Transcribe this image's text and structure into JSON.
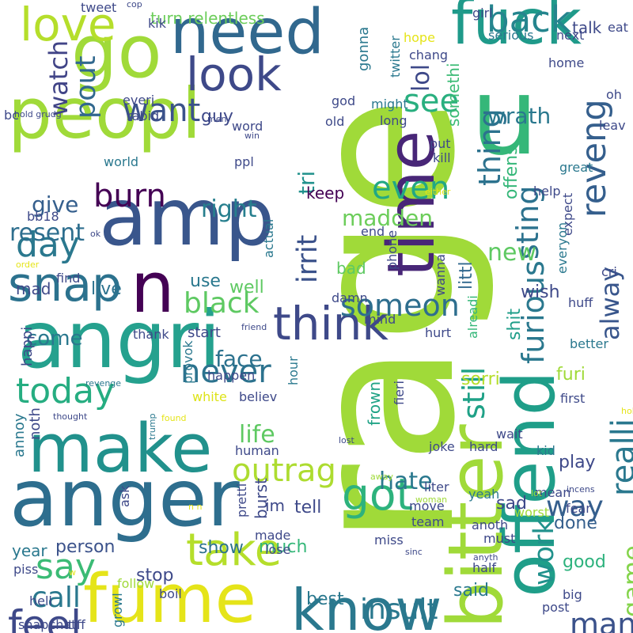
{
  "words": [
    {
      "text": "rage",
      "color": "#a0da39",
      "vertical": true
    },
    {
      "text": "peopl",
      "color": "#a0da39",
      "vertical": false
    },
    {
      "text": "go",
      "color": "#a0da39",
      "vertical": false
    },
    {
      "text": "need",
      "color": "#31688e",
      "vertical": false
    },
    {
      "text": "fuck",
      "color": "#1f9a8a",
      "vertical": false
    },
    {
      "text": "u",
      "color": "#35b779",
      "vertical": false
    },
    {
      "text": "time",
      "color": "#482677",
      "vertical": true
    },
    {
      "text": "offend",
      "color": "#1f9e89",
      "vertical": true
    },
    {
      "text": "bitter",
      "color": "#a0da39",
      "vertical": true
    },
    {
      "text": "love",
      "color": "#b5de2b",
      "vertical": false
    },
    {
      "text": "amp",
      "color": "#39568c",
      "vertical": false
    },
    {
      "text": "look",
      "color": "#3e4989",
      "vertical": false
    },
    {
      "text": "angri",
      "color": "#25a18e",
      "vertical": false
    },
    {
      "text": "make",
      "color": "#21918c",
      "vertical": false
    },
    {
      "text": "anger",
      "color": "#2e6e8e",
      "vertical": false
    },
    {
      "text": "fume",
      "color": "#e5e419",
      "vertical": false
    },
    {
      "text": "know",
      "color": "#2a788e",
      "vertical": false
    },
    {
      "text": "think",
      "color": "#3e4989",
      "vertical": false
    },
    {
      "text": "snap",
      "color": "#2c728e",
      "vertical": false
    },
    {
      "text": "n",
      "color": "#440154",
      "vertical": false
    },
    {
      "text": "take",
      "color": "#b5de2b",
      "vertical": false
    },
    {
      "text": "watch",
      "color": "#414487",
      "vertical": true
    },
    {
      "text": "want",
      "color": "#3b528b",
      "vertical": false
    },
    {
      "text": "pout",
      "color": "#31688e",
      "vertical": true
    },
    {
      "text": "lol",
      "color": "#3e4989",
      "vertical": true
    },
    {
      "text": "see",
      "color": "#29af7f",
      "vertical": false
    },
    {
      "text": "back",
      "color": "#25858e",
      "vertical": false
    },
    {
      "text": "got",
      "color": "#2db27d",
      "vertical": false
    },
    {
      "text": "burn",
      "color": "#440154",
      "vertical": false
    },
    {
      "text": "day",
      "color": "#2a788e",
      "vertical": false
    },
    {
      "text": "today",
      "color": "#26ad81",
      "vertical": false
    },
    {
      "text": "never",
      "color": "#2c728e",
      "vertical": false
    },
    {
      "text": "even",
      "color": "#22a884",
      "vertical": false
    },
    {
      "text": "thing",
      "color": "#2c728e",
      "vertical": true
    },
    {
      "text": "reveng",
      "color": "#355f8d",
      "vertical": true
    },
    {
      "text": "sting",
      "color": "#2c728e",
      "vertical": true
    },
    {
      "text": "wrath",
      "color": "#2a788e",
      "vertical": false
    },
    {
      "text": "say",
      "color": "#3bbb75",
      "vertical": false
    },
    {
      "text": "feel",
      "color": "#3e4989",
      "vertical": false
    },
    {
      "text": "black",
      "color": "#5ec962",
      "vertical": false
    },
    {
      "text": "outrag",
      "color": "#addc30",
      "vertical": false
    },
    {
      "text": "someon",
      "color": "#2e6e8e",
      "vertical": false
    },
    {
      "text": "hate",
      "color": "#2a788e",
      "vertical": false
    },
    {
      "text": "insult",
      "color": "#2a788e",
      "vertical": false
    },
    {
      "text": "realli",
      "color": "#2a788e",
      "vertical": true
    },
    {
      "text": "furious",
      "color": "#2a788e",
      "vertical": true
    },
    {
      "text": "alway",
      "color": "#39568c",
      "vertical": true
    },
    {
      "text": "still",
      "color": "#1fa187",
      "vertical": true
    },
    {
      "text": "irrit",
      "color": "#3b528b",
      "vertical": true
    },
    {
      "text": "tri",
      "color": "#21918c",
      "vertical": true
    },
    {
      "text": "madden",
      "color": "#6ccd5a",
      "vertical": false
    },
    {
      "text": "new",
      "color": "#5ec962",
      "vertical": false
    },
    {
      "text": "man",
      "color": "#3b528b",
      "vertical": false
    },
    {
      "text": "way",
      "color": "#355f8d",
      "vertical": false
    },
    {
      "text": "work",
      "color": "#21918c",
      "vertical": true
    },
    {
      "text": "game",
      "color": "#84d44b",
      "vertical": true
    },
    {
      "text": "call",
      "color": "#2a788e",
      "vertical": false
    },
    {
      "text": "right",
      "color": "#277f8e",
      "vertical": false
    },
    {
      "text": "give",
      "color": "#355f8d",
      "vertical": false
    },
    {
      "text": "resent",
      "color": "#2e6e8e",
      "vertical": false
    },
    {
      "text": "life",
      "color": "#5ec962",
      "vertical": false
    },
    {
      "text": "face",
      "color": "#2c728e",
      "vertical": false
    },
    {
      "text": "come",
      "color": "#2a788e",
      "vertical": false
    },
    {
      "text": "guy",
      "color": "#3e4989",
      "vertical": false
    },
    {
      "text": "keep",
      "color": "#440154",
      "vertical": false
    },
    {
      "text": "bad",
      "color": "#5ec962",
      "vertical": false
    },
    {
      "text": "littl",
      "color": "#31688e",
      "vertical": true
    },
    {
      "text": "offens",
      "color": "#35b779",
      "vertical": true
    },
    {
      "text": "shit",
      "color": "#1f9e89",
      "vertical": true
    },
    {
      "text": "turn relentless",
      "color": "#6ccd5a",
      "vertical": false
    },
    {
      "text": "talk",
      "color": "#3e4989",
      "vertical": false
    },
    {
      "text": "gonna",
      "color": "#2a788e",
      "vertical": true
    },
    {
      "text": "somethi",
      "color": "#3bbb75",
      "vertical": true
    },
    {
      "text": "live",
      "color": "#2c728e",
      "vertical": false
    },
    {
      "text": "mad",
      "color": "#3e4989",
      "vertical": false
    },
    {
      "text": "use",
      "color": "#2a788e",
      "vertical": false
    },
    {
      "text": "well",
      "color": "#5ec962",
      "vertical": false
    },
    {
      "text": "person",
      "color": "#3b528b",
      "vertical": false
    },
    {
      "text": "year",
      "color": "#2a788e",
      "vertical": false
    },
    {
      "text": "show",
      "color": "#2c728e",
      "vertical": false
    },
    {
      "text": "much",
      "color": "#35b779",
      "vertical": false
    },
    {
      "text": "stop",
      "color": "#3e4989",
      "vertical": false
    },
    {
      "text": "best",
      "color": "#2a788e",
      "vertical": false
    },
    {
      "text": "said",
      "color": "#2a788e",
      "vertical": false
    },
    {
      "text": "tell",
      "color": "#3e4989",
      "vertical": false
    },
    {
      "text": "burst",
      "color": "#3e4989",
      "vertical": true
    },
    {
      "text": "im",
      "color": "#3e4989",
      "vertical": false
    },
    {
      "text": "wish",
      "color": "#3e4989",
      "vertical": false
    },
    {
      "text": "done",
      "color": "#355f8d",
      "vertical": false
    },
    {
      "text": "play",
      "color": "#3e4989",
      "vertical": false
    },
    {
      "text": "sad",
      "color": "#3e4989",
      "vertical": false
    },
    {
      "text": "good",
      "color": "#2db27d",
      "vertical": false
    },
    {
      "text": "furi",
      "color": "#a0da39",
      "vertical": false
    },
    {
      "text": "sorri",
      "color": "#b5de2b",
      "vertical": false
    },
    {
      "text": "frown",
      "color": "#20a386",
      "vertical": true
    },
    {
      "text": "happi",
      "color": "#3e4989",
      "vertical": true
    },
    {
      "text": "annoy",
      "color": "#2a788e",
      "vertical": true
    },
    {
      "text": "noth",
      "color": "#3e4989",
      "vertical": true
    },
    {
      "text": "start",
      "color": "#3e4989",
      "vertical": false
    },
    {
      "text": "thank",
      "color": "#3e4989",
      "vertical": false
    },
    {
      "text": "happen",
      "color": "#3e4989",
      "vertical": false
    },
    {
      "text": "white",
      "color": "#dde318",
      "vertical": false
    },
    {
      "text": "believ",
      "color": "#3e4989",
      "vertical": false
    },
    {
      "text": "provok",
      "color": "#2a788e",
      "vertical": true
    },
    {
      "text": "hour",
      "color": "#2a788e",
      "vertical": true
    },
    {
      "text": "human",
      "color": "#3e4989",
      "vertical": false
    },
    {
      "text": "hurt",
      "color": "#3e4989",
      "vertical": false
    },
    {
      "text": "mind",
      "color": "#3e4989",
      "vertical": false
    },
    {
      "text": "damn",
      "color": "#3e4989",
      "vertical": false
    },
    {
      "text": "end",
      "color": "#3e4989",
      "vertical": false
    },
    {
      "text": "wanna",
      "color": "#3e4989",
      "vertical": true
    },
    {
      "text": "phone",
      "color": "#3e4989",
      "vertical": true
    },
    {
      "text": "actual",
      "color": "#2a788e",
      "vertical": true
    },
    {
      "text": "fieri",
      "color": "#3e4989",
      "vertical": true
    },
    {
      "text": "alreadi",
      "color": "#35b779",
      "vertical": true
    },
    {
      "text": "better",
      "color": "#2a788e",
      "vertical": false
    },
    {
      "text": "first",
      "color": "#3e4989",
      "vertical": false
    },
    {
      "text": "wait",
      "color": "#3e4989",
      "vertical": false
    },
    {
      "text": "kid",
      "color": "#2a788e",
      "vertical": false
    },
    {
      "text": "joke",
      "color": "#3e4989",
      "vertical": false
    },
    {
      "text": "hard",
      "color": "#3e4989",
      "vertical": false
    },
    {
      "text": "liter",
      "color": "#3e4989",
      "vertical": false
    },
    {
      "text": "yeah",
      "color": "#2a788e",
      "vertical": false
    },
    {
      "text": "move",
      "color": "#3e4989",
      "vertical": false
    },
    {
      "text": "mean",
      "color": "#3e4989",
      "vertical": false
    },
    {
      "text": "fear",
      "color": "#3e4989",
      "vertical": false
    },
    {
      "text": "worst",
      "color": "#a0da39",
      "vertical": false
    },
    {
      "text": "anoth",
      "color": "#3e4989",
      "vertical": false
    },
    {
      "text": "must",
      "color": "#3e4989",
      "vertical": false
    },
    {
      "text": "team",
      "color": "#3e4989",
      "vertical": false
    },
    {
      "text": "miss",
      "color": "#3e4989",
      "vertical": false
    },
    {
      "text": "lose",
      "color": "#3e4989",
      "vertical": false
    },
    {
      "text": "made",
      "color": "#3e4989",
      "vertical": false
    },
    {
      "text": "pretti",
      "color": "#3e4989",
      "vertical": true
    },
    {
      "text": "ask",
      "color": "#3e4989",
      "vertical": true
    },
    {
      "text": "boil",
      "color": "#3e4989",
      "vertical": false
    },
    {
      "text": "follow",
      "color": "#a0da39",
      "vertical": false
    },
    {
      "text": "hell",
      "color": "#3e4989",
      "vertical": false
    },
    {
      "text": "snapchat",
      "color": "#3e4989",
      "vertical": false
    },
    {
      "text": "tiff",
      "color": "#3e4989",
      "vertical": false
    },
    {
      "text": "growl",
      "color": "#2a788e",
      "vertical": true
    },
    {
      "text": "post",
      "color": "#3e4989",
      "vertical": false
    },
    {
      "text": "big",
      "color": "#3e4989",
      "vertical": false
    },
    {
      "text": "half",
      "color": "#3e4989",
      "vertical": false
    },
    {
      "text": "sinc",
      "color": "#3e4989",
      "vertical": false
    },
    {
      "text": "anyth",
      "color": "#3e4989",
      "vertical": false
    },
    {
      "text": "piss",
      "color": "#3e4989",
      "vertical": false
    },
    {
      "text": "tweet",
      "color": "#3e4989",
      "vertical": false
    },
    {
      "text": "cop",
      "color": "#3e4989",
      "vertical": false
    },
    {
      "text": "kik",
      "color": "#3e4989",
      "vertical": false
    },
    {
      "text": "everi",
      "color": "#3e4989",
      "vertical": false
    },
    {
      "text": "rabid",
      "color": "#3e4989",
      "vertical": false
    },
    {
      "text": "hold grudg",
      "color": "#3e4989",
      "vertical": false
    },
    {
      "text": "bc",
      "color": "#3e4989",
      "vertical": false
    },
    {
      "text": "world",
      "color": "#2a788e",
      "vertical": false
    },
    {
      "text": "ppl",
      "color": "#3e4989",
      "vertical": false
    },
    {
      "text": "word",
      "color": "#3e4989",
      "vertical": false
    },
    {
      "text": "win",
      "color": "#3e4989",
      "vertical": false
    },
    {
      "text": "men",
      "color": "#3e4989",
      "vertical": false
    },
    {
      "text": "bb18",
      "color": "#3e4989",
      "vertical": false
    },
    {
      "text": "girl",
      "color": "#3e4989",
      "vertical": false
    },
    {
      "text": "serious",
      "color": "#2a788e",
      "vertical": false
    },
    {
      "text": "next",
      "color": "#3e4989",
      "vertical": false
    },
    {
      "text": "eat",
      "color": "#3e4989",
      "vertical": false
    },
    {
      "text": "hope",
      "color": "#e5e419",
      "vertical": false
    },
    {
      "text": "twitter",
      "color": "#2a788e",
      "vertical": true
    },
    {
      "text": "chang",
      "color": "#3e4989",
      "vertical": false
    },
    {
      "text": "home",
      "color": "#3e4989",
      "vertical": false
    },
    {
      "text": "oh",
      "color": "#3e4989",
      "vertical": false
    },
    {
      "text": "god",
      "color": "#3e4989",
      "vertical": false
    },
    {
      "text": "might",
      "color": "#2a788e",
      "vertical": false
    },
    {
      "text": "long",
      "color": "#3e4989",
      "vertical": false
    },
    {
      "text": "old",
      "color": "#3e4989",
      "vertical": false
    },
    {
      "text": "kill",
      "color": "#3e4989",
      "vertical": false
    },
    {
      "text": "put",
      "color": "#3e4989",
      "vertical": false
    },
    {
      "text": "leav",
      "color": "#3e4989",
      "vertical": false
    },
    {
      "text": "great",
      "color": "#2a788e",
      "vertical": false
    },
    {
      "text": "help",
      "color": "#3e4989",
      "vertical": false
    },
    {
      "text": "expect",
      "color": "#3e4989",
      "vertical": true
    },
    {
      "text": "everyon",
      "color": "#2a788e",
      "vertical": true
    },
    {
      "text": "cri",
      "color": "#3e4989",
      "vertical": false
    },
    {
      "text": "huff",
      "color": "#3e4989",
      "vertical": false
    },
    {
      "text": "either",
      "color": "#e5e419",
      "vertical": false
    },
    {
      "text": "ok",
      "color": "#3e4989",
      "vertical": false
    },
    {
      "text": "order",
      "color": "#e5e419",
      "vertical": false
    },
    {
      "text": "find",
      "color": "#3e4989",
      "vertical": false
    },
    {
      "text": "friend",
      "color": "#3e4989",
      "vertical": false
    },
    {
      "text": "revenge",
      "color": "#2a788e",
      "vertical": false
    },
    {
      "text": "thought",
      "color": "#3e4989",
      "vertical": false
    },
    {
      "text": "trump",
      "color": "#2a788e",
      "vertical": true
    },
    {
      "text": "found",
      "color": "#e5e419",
      "vertical": false
    },
    {
      "text": "lost",
      "color": "#3e4989",
      "vertical": false
    },
    {
      "text": "away",
      "color": "#a0da39",
      "vertical": false
    },
    {
      "text": "woman",
      "color": "#a0da39",
      "vertical": false
    },
    {
      "text": "lot",
      "color": "#a0da39",
      "vertical": false
    },
    {
      "text": "incens",
      "color": "#3e4989",
      "vertical": false
    },
    {
      "text": "hold",
      "color": "#e5e419",
      "vertical": false
    },
    {
      "text": "n n",
      "color": "#e5e419",
      "vertical": false
    },
    {
      "text": "w",
      "color": "#e5e419",
      "vertical": false
    }
  ]
}
